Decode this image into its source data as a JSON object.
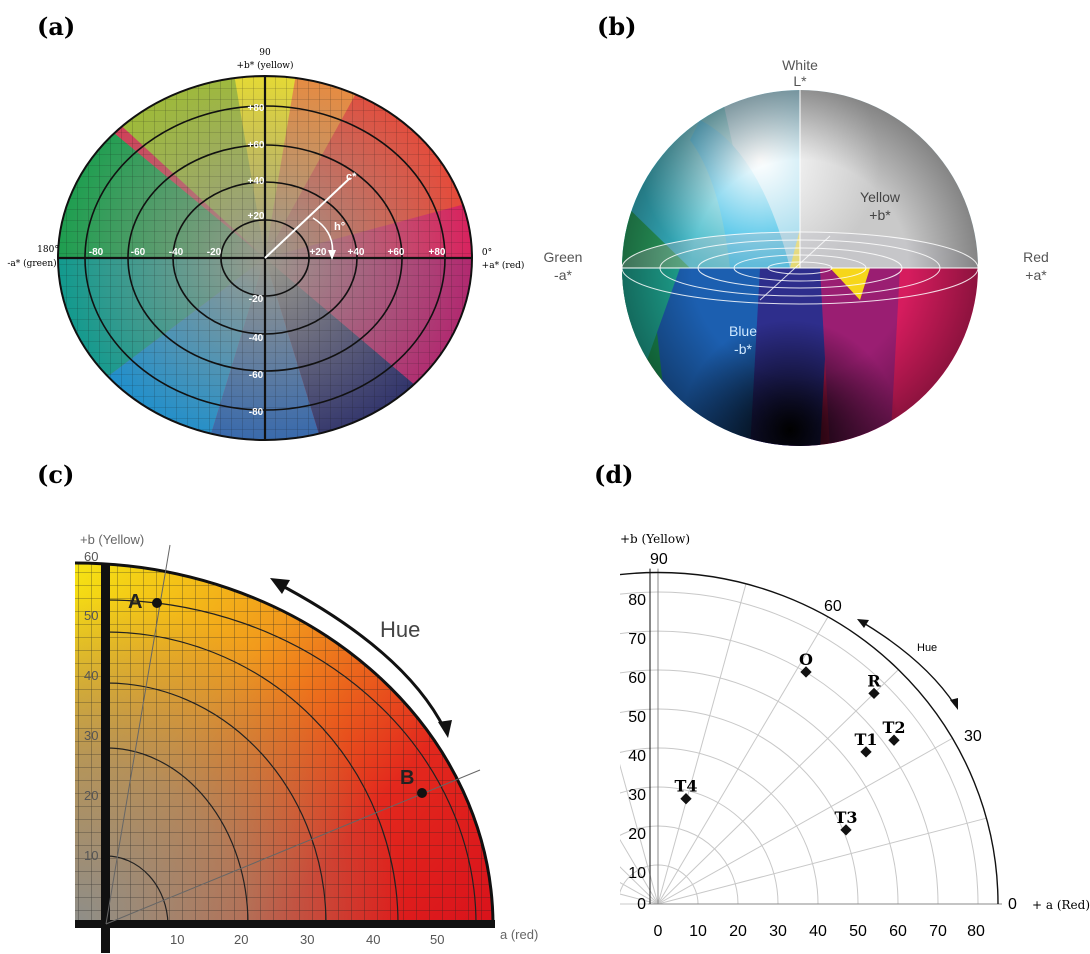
{
  "panels": {
    "a": {
      "label": "(a)",
      "top_label_1": "90",
      "top_label_2": "+b* (yellow)",
      "left_label_1": "180°",
      "left_label_2": "-a* (green)",
      "right_label_1": "0°",
      "right_label_2": "+a* (red)",
      "c_label": "c*",
      "h_label": "h°",
      "b_ticks": [
        "+80",
        "+60",
        "+40",
        "+20",
        "-20",
        "-40",
        "-60",
        "-80"
      ],
      "a_ticks": [
        "-80",
        "-60",
        "-40",
        "-20",
        "+20",
        "+40",
        "+60",
        "+80"
      ]
    },
    "b": {
      "label": "(b)",
      "white_1": "White",
      "white_2": "L*",
      "yellow_1": "Yellow",
      "yellow_2": "+b*",
      "green_1": "Green",
      "green_2": "-a*",
      "red_1": "Red",
      "red_2": "+a*",
      "blue_1": "Blue",
      "blue_2": "-b*"
    },
    "c": {
      "label": "(c)",
      "y_axis_label": "+b (Yellow)",
      "x_axis_label": "a (red)",
      "hue_label": "Hue",
      "point_a": "A",
      "point_b": "B",
      "y_ticks": [
        "60",
        "50",
        "40",
        "30",
        "20",
        "10"
      ],
      "x_ticks": [
        "10",
        "20",
        "30",
        "40",
        "50"
      ]
    },
    "d": {
      "label": "(d)",
      "y_axis_label": "+b (Yellow)",
      "x_axis_label": "+ a (Red)",
      "hue_label": "Hue",
      "angle_90": "90",
      "angle_60": "60",
      "angle_30": "30",
      "angle_0": "0",
      "y_ticks": [
        "80",
        "70",
        "60",
        "50",
        "40",
        "30",
        "20",
        "10",
        "0"
      ],
      "x_ticks": [
        "0",
        "10",
        "20",
        "30",
        "40",
        "50",
        "60",
        "70",
        "80"
      ],
      "points": [
        {
          "name": "O",
          "a": 37,
          "b": 59.5
        },
        {
          "name": "R",
          "a": 54,
          "b": 54
        },
        {
          "name": "T2",
          "a": 59,
          "b": 42
        },
        {
          "name": "T1",
          "a": 52,
          "b": 39
        },
        {
          "name": "T4",
          "a": 7,
          "b": 27
        },
        {
          "name": "T3",
          "a": 47,
          "b": 19
        }
      ]
    }
  }
}
